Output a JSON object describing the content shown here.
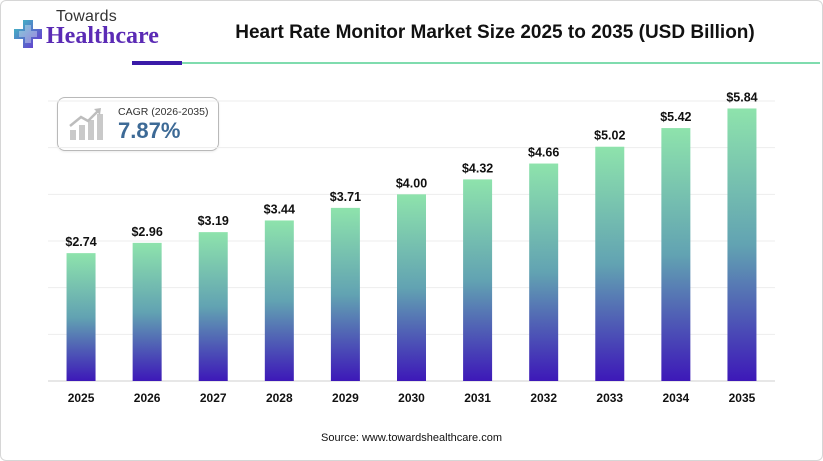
{
  "logo": {
    "top_text": "Towards",
    "brand_text": "Healthcare"
  },
  "title": "Heart Rate Monitor Market Size 2025 to 2035 (USD Billion)",
  "cagr": {
    "label": "CAGR (2026-2035)",
    "value": "7.87%",
    "icon": "growth-chart-icon"
  },
  "source": "Source: www.towardshealthcare.com",
  "colors": {
    "bar_top": "#8ee3ac",
    "bar_mid": "#62a3b2",
    "bar_bottom": "#3d18b8",
    "accent_purple": "#3a1aa8",
    "accent_green": "#7fdcae",
    "cagr_value": "#3d6a96"
  },
  "chart_data": {
    "type": "bar",
    "categories": [
      "2025",
      "2026",
      "2027",
      "2028",
      "2029",
      "2030",
      "2031",
      "2032",
      "2033",
      "2034",
      "2035"
    ],
    "values": [
      2.74,
      2.96,
      3.19,
      3.44,
      3.71,
      4.0,
      4.32,
      4.66,
      5.02,
      5.42,
      5.84
    ],
    "value_labels": [
      "$2.74",
      "$2.96",
      "$3.19",
      "$3.44",
      "$3.71",
      "$4.00",
      "$4.32",
      "$4.66",
      "$5.02",
      "$5.42",
      "$5.84"
    ],
    "title": "Heart Rate Monitor Market Size 2025 to 2035 (USD Billion)",
    "xlabel": "",
    "ylabel": "",
    "ylim": [
      0,
      6
    ],
    "grid": true,
    "legend": "none"
  }
}
